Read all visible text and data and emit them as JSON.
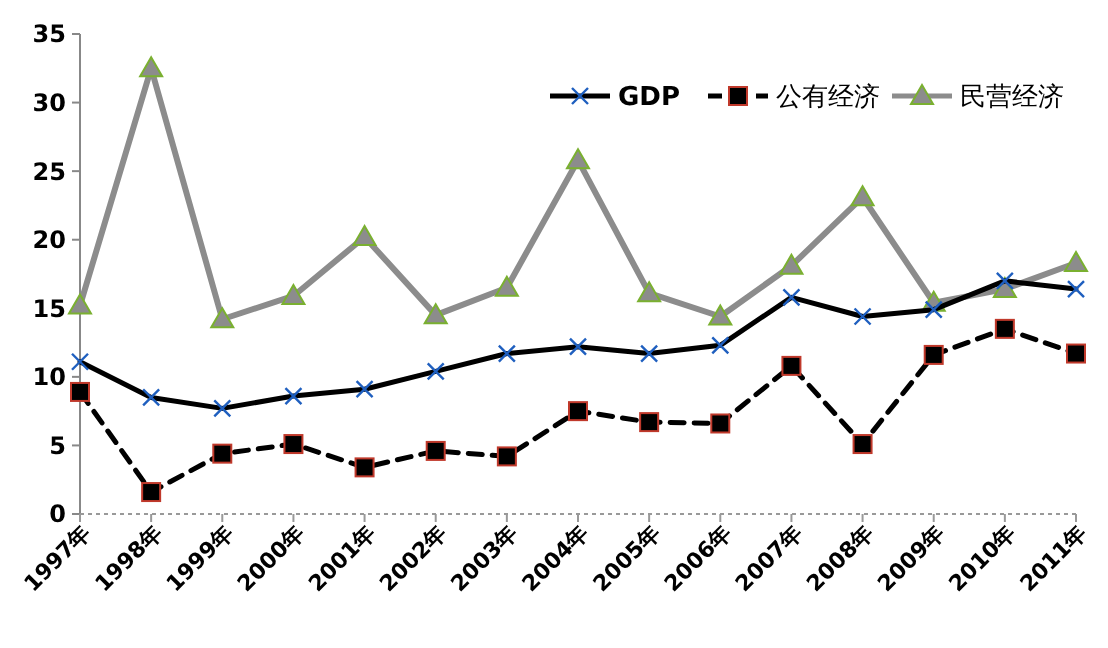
{
  "chart_data": {
    "type": "line",
    "categories": [
      "1997年",
      "1998年",
      "1999年",
      "2000年",
      "2001年",
      "2002年",
      "2003年",
      "2004年",
      "2005年",
      "2006年",
      "2007年",
      "2008年",
      "2009年",
      "2010年",
      "2011年"
    ],
    "series": [
      {
        "name": "GDP",
        "color": "#000000",
        "marker": "cross",
        "line_style": "solid",
        "values": [
          11.1,
          8.5,
          7.7,
          8.6,
          9.1,
          10.4,
          11.7,
          12.2,
          11.7,
          12.3,
          15.8,
          14.4,
          14.9,
          17.0,
          16.4
        ]
      },
      {
        "name": "公有经济",
        "color": "#000000",
        "marker": "square",
        "line_style": "dashed",
        "values": [
          8.9,
          1.6,
          4.4,
          5.1,
          3.4,
          4.6,
          4.2,
          7.5,
          6.7,
          6.6,
          10.8,
          5.1,
          11.6,
          13.5,
          11.7
        ]
      },
      {
        "name": "民营经济",
        "color": "#8c8c8c",
        "marker": "triangle",
        "line_style": "solid",
        "values": [
          15.2,
          32.5,
          14.2,
          15.9,
          20.2,
          14.5,
          16.5,
          25.8,
          16.1,
          14.4,
          18.1,
          23.1,
          15.4,
          16.4,
          18.3
        ]
      }
    ],
    "ylim": [
      0,
      35
    ],
    "yticks": [
      0,
      5,
      10,
      15,
      20,
      25,
      30,
      35
    ],
    "grid": false,
    "legend": "top right"
  }
}
